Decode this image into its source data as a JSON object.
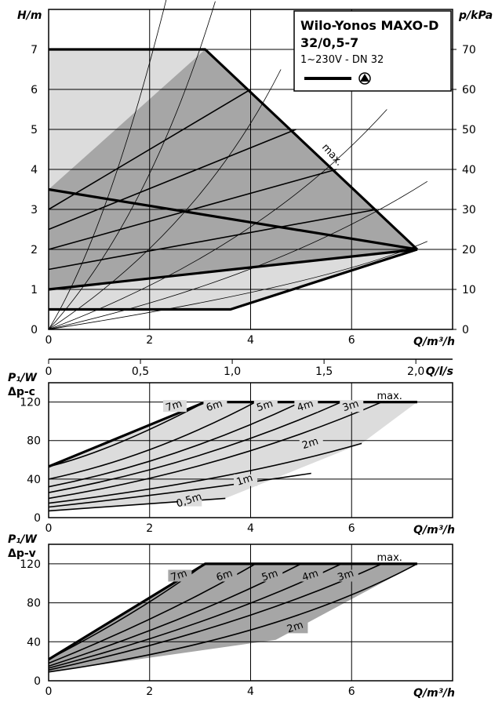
{
  "colors": {
    "frame": "#000000",
    "grid": "#000000",
    "operating_fill": "#a6a6a6",
    "light_fill": "#dcdcdc",
    "curve": "#000000"
  },
  "chart_data": [
    {
      "type": "line",
      "panel": "head-vs-flow",
      "xlabel": "Q/m³/h",
      "ylabel": "H/m",
      "ylabel_right": "p/kPa",
      "xlim": [
        0,
        8
      ],
      "ylim": [
        0,
        8
      ],
      "ylim_right": [
        0,
        80
      ],
      "x_ticks": [
        "0",
        "2",
        "4",
        "6"
      ],
      "y_ticks": [
        "0",
        "1",
        "2",
        "3",
        "4",
        "5",
        "6",
        "7"
      ],
      "y_ticks_right": [
        "0",
        "10",
        "20",
        "30",
        "40",
        "50",
        "60",
        "70"
      ],
      "grid": true,
      "legend": {
        "title_line1": "Wilo-Yonos MAXO-D",
        "title_line2": "32/0,5-7",
        "subtitle": "1~230V - DN 32",
        "position": "top-right"
      },
      "annotations": [
        "max."
      ],
      "series": [
        {
          "name": "max.",
          "x": [
            0,
            3.1,
            7.3
          ],
          "y": [
            7,
            7,
            2
          ]
        },
        {
          "x": [
            0,
            7.3
          ],
          "y": [
            3.5,
            2
          ]
        },
        {
          "x": [
            0,
            3.6,
            7.3
          ],
          "y": [
            0.5,
            0.5,
            2
          ]
        },
        {
          "x": [
            0,
            7.3
          ],
          "y": [
            1,
            2
          ]
        },
        {
          "x": [
            0,
            4.0
          ],
          "y": [
            3,
            6
          ]
        },
        {
          "x": [
            0,
            4.9
          ],
          "y": [
            2.5,
            5
          ]
        },
        {
          "x": [
            0,
            5.7
          ],
          "y": [
            2,
            4
          ]
        },
        {
          "x": [
            0,
            6.5
          ],
          "y": [
            1.5,
            3
          ]
        },
        {
          "x": [
            0,
            7.3
          ],
          "y": [
            1,
            2
          ]
        }
      ],
      "system_curves": [
        {
          "x": [
            0,
            1.2,
            2.4
          ],
          "y": [
            0,
            2.5,
            8.6
          ]
        },
        {
          "x": [
            0,
            2.0,
            3.3
          ],
          "y": [
            0,
            2.8,
            8.2
          ]
        },
        {
          "x": [
            0,
            3.0,
            4.6
          ],
          "y": [
            0,
            2.5,
            6.5
          ]
        },
        {
          "x": [
            0,
            4.2,
            6.7
          ],
          "y": [
            0,
            2.0,
            5.5
          ]
        },
        {
          "x": [
            0,
            4.5,
            7.5
          ],
          "y": [
            0,
            1.3,
            3.7
          ]
        },
        {
          "x": [
            0,
            5.5,
            7.5
          ],
          "y": [
            0,
            1.1,
            2.2
          ]
        }
      ]
    },
    {
      "type": "line",
      "panel": "secondary-axis",
      "xlabel": "Q/l/s",
      "xlim": [
        0,
        2.2
      ],
      "x_ticks": [
        "0",
        "0,5",
        "1,0",
        "1,5",
        "2,0"
      ]
    },
    {
      "type": "line",
      "panel": "power-dp-c",
      "ylabel_line1": "P₁/W",
      "ylabel_line2": "Δp-c",
      "xlabel": "Q/m³/h",
      "xlim": [
        0,
        8
      ],
      "ylim": [
        0,
        140
      ],
      "x_ticks": [
        "0",
        "2",
        "4",
        "6"
      ],
      "y_ticks": [
        "0",
        "40",
        "80",
        "120"
      ],
      "grid": true,
      "annotations": [
        "max."
      ],
      "series": [
        {
          "name": "7m",
          "x": [
            0,
            1.2,
            3.1
          ],
          "y": [
            53,
            68,
            120
          ]
        },
        {
          "name": "6m",
          "x": [
            0,
            2.0,
            4.1
          ],
          "y": [
            40,
            62,
            120
          ]
        },
        {
          "name": "5m",
          "x": [
            0,
            2.5,
            5.0
          ],
          "y": [
            32,
            58,
            120
          ]
        },
        {
          "name": "4m",
          "x": [
            0,
            3.0,
            5.8
          ],
          "y": [
            26,
            55,
            120
          ]
        },
        {
          "name": "3m",
          "x": [
            0,
            3.5,
            6.6
          ],
          "y": [
            20,
            50,
            120
          ]
        },
        {
          "name": "2m",
          "x": [
            0,
            3.6,
            6.2
          ],
          "y": [
            15,
            38,
            77
          ]
        },
        {
          "name": "1m",
          "x": [
            0,
            2.8,
            5.2
          ],
          "y": [
            11,
            27,
            46
          ]
        },
        {
          "name": "0,5m",
          "x": [
            0,
            1.7,
            3.5
          ],
          "y": [
            7,
            13,
            20
          ]
        },
        {
          "name": "max.",
          "x": [
            0,
            3.1,
            7.3
          ],
          "y": [
            53,
            120,
            120
          ]
        }
      ],
      "curve_labels": [
        "7m",
        "6m",
        "5m",
        "4m",
        "3m",
        "2m",
        "1m",
        "0,5m"
      ]
    },
    {
      "type": "line",
      "panel": "power-dp-v",
      "ylabel_line1": "P₁/W",
      "ylabel_line2": "Δp-v",
      "xlabel": "Q/m³/h",
      "xlim": [
        0,
        8
      ],
      "ylim": [
        0,
        140
      ],
      "x_ticks": [
        "0",
        "2",
        "4",
        "6"
      ],
      "y_ticks": [
        "0",
        "40",
        "80",
        "120"
      ],
      "grid": true,
      "annotations": [
        "max."
      ],
      "series": [
        {
          "name": "7m",
          "x": [
            0,
            1.8,
            3.1
          ],
          "y": [
            22,
            70,
            120
          ]
        },
        {
          "name": "6m",
          "x": [
            0,
            2.3,
            4.1
          ],
          "y": [
            18,
            66,
            120
          ]
        },
        {
          "name": "5m",
          "x": [
            0,
            2.8,
            5.0
          ],
          "y": [
            15,
            62,
            120
          ]
        },
        {
          "name": "4m",
          "x": [
            0,
            3.3,
            5.8
          ],
          "y": [
            13,
            58,
            120
          ]
        },
        {
          "name": "3m",
          "x": [
            0,
            3.8,
            6.6
          ],
          "y": [
            11,
            54,
            120
          ]
        },
        {
          "name": "2m",
          "x": [
            0,
            4.5,
            7.3
          ],
          "y": [
            9,
            42,
            120
          ]
        },
        {
          "name": "max.",
          "x": [
            0,
            3.1,
            7.3
          ],
          "y": [
            22,
            120,
            120
          ]
        }
      ],
      "curve_labels": [
        "7m",
        "6m",
        "5m",
        "4m",
        "3m",
        "2m"
      ]
    }
  ]
}
